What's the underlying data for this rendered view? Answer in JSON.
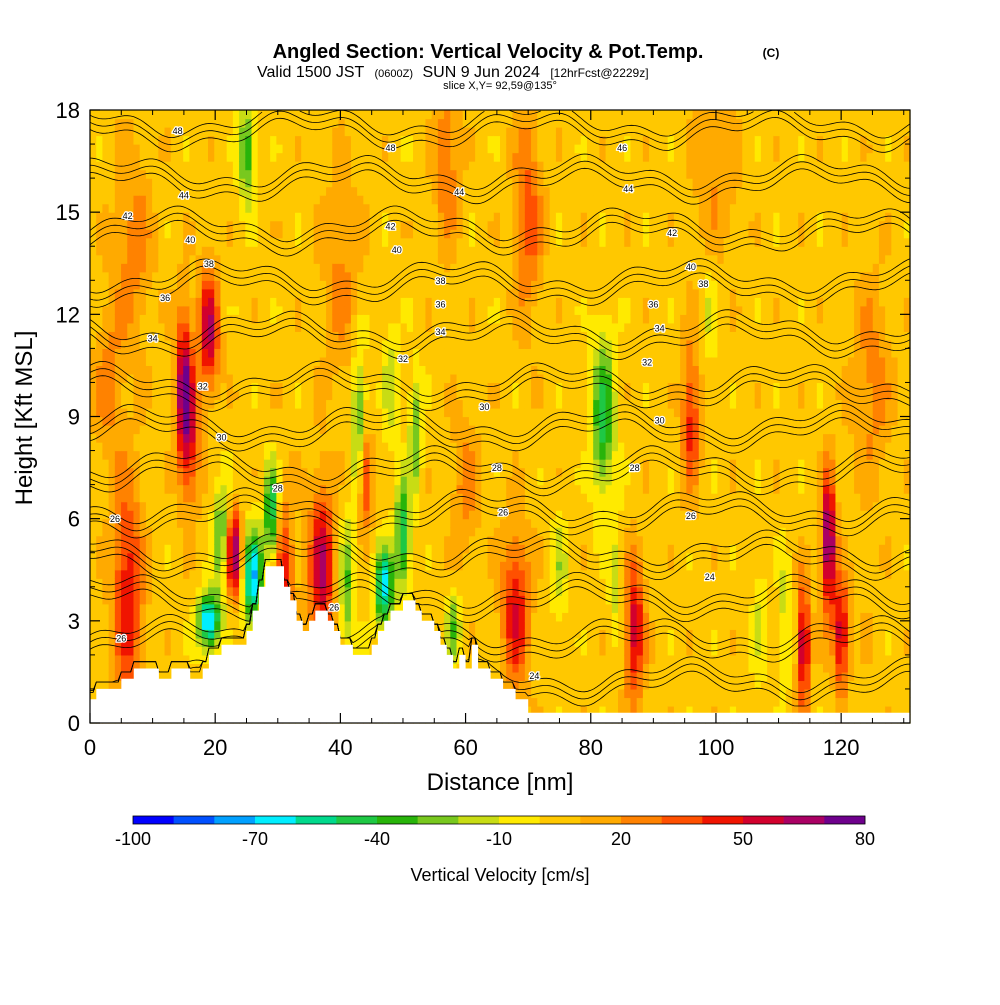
{
  "title": {
    "main": "Angled Section: Vertical Velocity & Pot.Temp.",
    "copyright": "(C)",
    "valid_prefix": "Valid 1500 JST",
    "valid_utc": "(0600Z)",
    "valid_date": "SUN 9 Jun 2024",
    "forecast": "[12hrFcst@2229z]",
    "slice": "slice X,Y= 92,59@135°"
  },
  "chart_data": {
    "type": "heatmap",
    "xlabel": "Distance [nm]",
    "ylabel": "Height [Kft MSL]",
    "xlim": [
      0,
      131
    ],
    "ylim": [
      0,
      18
    ],
    "x_ticks": [
      0,
      20,
      40,
      60,
      80,
      100,
      120
    ],
    "x_tick_labels": [
      "0",
      "20",
      "40",
      "60",
      "80",
      "100",
      "120"
    ],
    "y_ticks": [
      0,
      3,
      6,
      9,
      12,
      15,
      18
    ],
    "y_tick_labels": [
      "0",
      "3",
      "6",
      "9",
      "12",
      "15",
      "18"
    ],
    "background_velocity": 5,
    "colorbar": {
      "label": "Vertical Velocity [cm/s]",
      "min": -100,
      "max": 80,
      "step": 10,
      "tick_values": [
        -100,
        -70,
        -40,
        -10,
        20,
        50,
        80
      ],
      "tick_labels": [
        "-100",
        "-70",
        "-40",
        "-10",
        "20",
        "50",
        "80"
      ],
      "colors": [
        "#0000ff",
        "#0050ff",
        "#00a0ff",
        "#00eeff",
        "#00d98c",
        "#1ec844",
        "#28b40a",
        "#78c81e",
        "#c8dc14",
        "#ffea00",
        "#ffc800",
        "#ffaa00",
        "#ff8200",
        "#ff5000",
        "#f01400",
        "#d2002d",
        "#aa0064",
        "#6e008c"
      ]
    },
    "velocity_cells": [
      {
        "x": 6,
        "z": 3.8,
        "v": 45,
        "wx": 2.4,
        "wz": 3.2
      },
      {
        "x": 15,
        "z": 10.0,
        "v": 60,
        "wx": 1.4,
        "wz": 2.2
      },
      {
        "x": 19,
        "z": 11.5,
        "v": 55,
        "wx": 1.6,
        "wz": 1.8
      },
      {
        "x": 16,
        "z": 8.2,
        "v": 35,
        "wx": 1.6,
        "wz": 2.0
      },
      {
        "x": 23,
        "z": 5.0,
        "v": 65,
        "wx": 1.3,
        "wz": 1.3
      },
      {
        "x": 26,
        "z": 4.3,
        "v": -75,
        "wx": 1.5,
        "wz": 1.4
      },
      {
        "x": 29,
        "z": 6.2,
        "v": -60,
        "wx": 1.1,
        "wz": 1.4
      },
      {
        "x": 19,
        "z": 3.0,
        "v": -80,
        "wx": 1.8,
        "wz": 0.8
      },
      {
        "x": 21,
        "z": 5.5,
        "v": -40,
        "wx": 1.3,
        "wz": 1.6
      },
      {
        "x": 25,
        "z": 16.8,
        "v": -45,
        "wx": 1.2,
        "wz": 1.5
      },
      {
        "x": 31,
        "z": 4.2,
        "v": 40,
        "wx": 1.6,
        "wz": 2.5
      },
      {
        "x": 37,
        "z": 4.6,
        "v": 55,
        "wx": 2.0,
        "wz": 2.4
      },
      {
        "x": 41,
        "z": 4.0,
        "v": -35,
        "wx": 1.2,
        "wz": 2.0
      },
      {
        "x": 43,
        "z": 8.8,
        "v": -40,
        "wx": 1.2,
        "wz": 2.2
      },
      {
        "x": 44,
        "z": 7.2,
        "v": 50,
        "wx": 1.1,
        "wz": 1.4
      },
      {
        "x": 47,
        "z": 4.0,
        "v": -70,
        "wx": 1.5,
        "wz": 1.2
      },
      {
        "x": 50,
        "z": 5.5,
        "v": -55,
        "wx": 1.2,
        "wz": 1.6
      },
      {
        "x": 52,
        "z": 8.5,
        "v": -35,
        "wx": 1.0,
        "wz": 1.8
      },
      {
        "x": 48,
        "z": 10.0,
        "v": -20,
        "wx": 1.2,
        "wz": 2.0
      },
      {
        "x": 58,
        "z": 2.8,
        "v": -35,
        "wx": 1.1,
        "wz": 1.0
      },
      {
        "x": 68,
        "z": 3.3,
        "v": 45,
        "wx": 2.2,
        "wz": 2.3
      },
      {
        "x": 75,
        "z": 4.5,
        "v": -20,
        "wx": 1.3,
        "wz": 1.6
      },
      {
        "x": 70,
        "z": 15.0,
        "v": 30,
        "wx": 2.2,
        "wz": 3.0
      },
      {
        "x": 57,
        "z": 16.5,
        "v": 25,
        "wx": 2.0,
        "wz": 2.5
      },
      {
        "x": 82,
        "z": 9.0,
        "v": -50,
        "wx": 1.8,
        "wz": 2.4
      },
      {
        "x": 87,
        "z": 2.8,
        "v": 50,
        "wx": 1.6,
        "wz": 2.1
      },
      {
        "x": 84,
        "z": 4.2,
        "v": -20,
        "wx": 1.1,
        "wz": 1.8
      },
      {
        "x": 96,
        "z": 9.0,
        "v": 40,
        "wx": 1.4,
        "wz": 2.1
      },
      {
        "x": 99,
        "z": 12.0,
        "v": -15,
        "wx": 1.2,
        "wz": 1.6
      },
      {
        "x": 107,
        "z": 3.0,
        "v": -15,
        "wx": 1.3,
        "wz": 2.0
      },
      {
        "x": 114,
        "z": 2.3,
        "v": 60,
        "wx": 1.0,
        "wz": 1.8
      },
      {
        "x": 118,
        "z": 5.3,
        "v": 75,
        "wx": 1.1,
        "wz": 2.0
      },
      {
        "x": 120,
        "z": 2.6,
        "v": 55,
        "wx": 1.2,
        "wz": 1.6
      },
      {
        "x": 111,
        "z": 3.0,
        "v": -20,
        "wx": 1.0,
        "wz": 2.0
      },
      {
        "x": 7,
        "z": 14.0,
        "v": 20,
        "wx": 3.0,
        "wz": 3.0
      },
      {
        "x": 3,
        "z": 10.0,
        "v": 18,
        "wx": 2.5,
        "wz": 2.5
      },
      {
        "x": 40,
        "z": 13.0,
        "v": 18,
        "wx": 3.0,
        "wz": 3.0
      },
      {
        "x": 100,
        "z": 16.0,
        "v": 15,
        "wx": 3.5,
        "wz": 2.5
      },
      {
        "x": 125,
        "z": 10.0,
        "v": 20,
        "wx": 3.0,
        "wz": 3.0
      },
      {
        "x": 124,
        "z": 3.0,
        "v": 3,
        "wx": 2.0,
        "wz": 2.0
      },
      {
        "x": 60,
        "z": 7.0,
        "v": 20,
        "wx": 2.2,
        "wz": 2.0
      }
    ],
    "terrain": [
      [
        0,
        0.7
      ],
      [
        1,
        0.7
      ],
      [
        1,
        1.0
      ],
      [
        5,
        1.0
      ],
      [
        5,
        1.3
      ],
      [
        7,
        1.3
      ],
      [
        7,
        1.6
      ],
      [
        11,
        1.6
      ],
      [
        11,
        1.3
      ],
      [
        13,
        1.3
      ],
      [
        13,
        1.6
      ],
      [
        16,
        1.6
      ],
      [
        16,
        1.3
      ],
      [
        18,
        1.3
      ],
      [
        18,
        1.6
      ],
      [
        19,
        1.6
      ],
      [
        19,
        2.0
      ],
      [
        21,
        2.0
      ],
      [
        21,
        2.3
      ],
      [
        25,
        2.3
      ],
      [
        25,
        2.7
      ],
      [
        26,
        2.7
      ],
      [
        26,
        3.3
      ],
      [
        27,
        3.3
      ],
      [
        27,
        4.0
      ],
      [
        28,
        4.0
      ],
      [
        28,
        4.6
      ],
      [
        31,
        4.6
      ],
      [
        31,
        4.0
      ],
      [
        32,
        4.0
      ],
      [
        32,
        3.6
      ],
      [
        33,
        3.6
      ],
      [
        33,
        3.0
      ],
      [
        34,
        3.0
      ],
      [
        34,
        2.7
      ],
      [
        35,
        2.7
      ],
      [
        35,
        3.0
      ],
      [
        36,
        3.0
      ],
      [
        36,
        3.3
      ],
      [
        38,
        3.3
      ],
      [
        38,
        3.0
      ],
      [
        39,
        3.0
      ],
      [
        39,
        2.7
      ],
      [
        40,
        2.7
      ],
      [
        40,
        2.3
      ],
      [
        42,
        2.3
      ],
      [
        42,
        2.0
      ],
      [
        45,
        2.0
      ],
      [
        45,
        2.3
      ],
      [
        46,
        2.3
      ],
      [
        46,
        2.7
      ],
      [
        47,
        2.7
      ],
      [
        47,
        3.0
      ],
      [
        48,
        3.0
      ],
      [
        48,
        3.3
      ],
      [
        50,
        3.3
      ],
      [
        50,
        3.6
      ],
      [
        52,
        3.6
      ],
      [
        52,
        3.3
      ],
      [
        53,
        3.3
      ],
      [
        53,
        3.0
      ],
      [
        55,
        3.0
      ],
      [
        55,
        2.7
      ],
      [
        56,
        2.7
      ],
      [
        56,
        2.3
      ],
      [
        57,
        2.3
      ],
      [
        57,
        2.0
      ],
      [
        58,
        2.0
      ],
      [
        58,
        1.6
      ],
      [
        59,
        1.6
      ],
      [
        59,
        2.0
      ],
      [
        60,
        2.0
      ],
      [
        60,
        1.6
      ],
      [
        61,
        1.6
      ],
      [
        61,
        2.3
      ],
      [
        62,
        2.3
      ],
      [
        62,
        1.6
      ],
      [
        64,
        1.6
      ],
      [
        64,
        1.3
      ],
      [
        66,
        1.3
      ],
      [
        66,
        1.0
      ],
      [
        68,
        1.0
      ],
      [
        68,
        0.7
      ],
      [
        70,
        0.7
      ],
      [
        70,
        0.3
      ],
      [
        131,
        0.3
      ]
    ],
    "theta_levels": [
      24,
      26,
      28,
      30,
      32,
      34,
      36,
      38,
      40,
      42,
      44,
      46,
      48
    ],
    "theta_contour_labels": [
      {
        "text": "48",
        "x": 14,
        "z": 17.4
      },
      {
        "text": "48",
        "x": 48,
        "z": 16.9
      },
      {
        "text": "46",
        "x": 85,
        "z": 16.9
      },
      {
        "text": "44",
        "x": 15,
        "z": 15.5
      },
      {
        "text": "44",
        "x": 59,
        "z": 15.6
      },
      {
        "text": "44",
        "x": 86,
        "z": 15.7
      },
      {
        "text": "42",
        "x": 6,
        "z": 14.9
      },
      {
        "text": "42",
        "x": 48,
        "z": 14.6
      },
      {
        "text": "42",
        "x": 93,
        "z": 14.4
      },
      {
        "text": "40",
        "x": 16,
        "z": 14.2
      },
      {
        "text": "40",
        "x": 49,
        "z": 13.9
      },
      {
        "text": "40",
        "x": 96,
        "z": 13.4
      },
      {
        "text": "38",
        "x": 19,
        "z": 13.5
      },
      {
        "text": "38",
        "x": 56,
        "z": 13.0
      },
      {
        "text": "38",
        "x": 98,
        "z": 12.9
      },
      {
        "text": "36",
        "x": 12,
        "z": 12.5
      },
      {
        "text": "36",
        "x": 56,
        "z": 12.3
      },
      {
        "text": "36",
        "x": 90,
        "z": 12.3
      },
      {
        "text": "34",
        "x": 10,
        "z": 11.3
      },
      {
        "text": "34",
        "x": 56,
        "z": 11.5
      },
      {
        "text": "34",
        "x": 91,
        "z": 11.6
      },
      {
        "text": "32",
        "x": 18,
        "z": 9.9
      },
      {
        "text": "32",
        "x": 50,
        "z": 10.7
      },
      {
        "text": "32",
        "x": 89,
        "z": 10.6
      },
      {
        "text": "30",
        "x": 21,
        "z": 8.4
      },
      {
        "text": "30",
        "x": 63,
        "z": 9.3
      },
      {
        "text": "30",
        "x": 91,
        "z": 8.9
      },
      {
        "text": "28",
        "x": 30,
        "z": 6.9
      },
      {
        "text": "28",
        "x": 65,
        "z": 7.5
      },
      {
        "text": "28",
        "x": 87,
        "z": 7.5
      },
      {
        "text": "26",
        "x": 4,
        "z": 6.0
      },
      {
        "text": "26",
        "x": 39,
        "z": 3.4
      },
      {
        "text": "26",
        "x": 66,
        "z": 6.2
      },
      {
        "text": "26",
        "x": 96,
        "z": 6.1
      },
      {
        "text": "26",
        "x": 5,
        "z": 2.5
      },
      {
        "text": "24",
        "x": 71,
        "z": 1.4
      },
      {
        "text": "24",
        "x": 99,
        "z": 4.3
      }
    ],
    "colors": {
      "terrain": "#ffffff",
      "contour": "#000000",
      "frame": "#000000"
    }
  }
}
